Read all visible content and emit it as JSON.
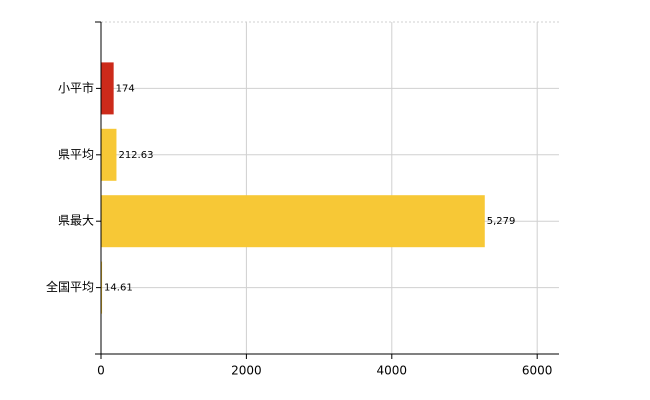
{
  "chart_data": {
    "type": "bar",
    "orientation": "horizontal",
    "categories": [
      "小平市",
      "県平均",
      "県最大",
      "全国平均"
    ],
    "values": [
      174,
      212.63,
      5279,
      14.61
    ],
    "value_labels": [
      "174",
      "212.63",
      "5,279",
      "14.61"
    ],
    "colors": [
      "#cc2a1a",
      "#f7c836",
      "#f7c836",
      "#f7c836"
    ],
    "xlim": [
      0,
      6300
    ],
    "xticks": [
      0,
      2000,
      4000,
      6000
    ],
    "grid": true
  }
}
